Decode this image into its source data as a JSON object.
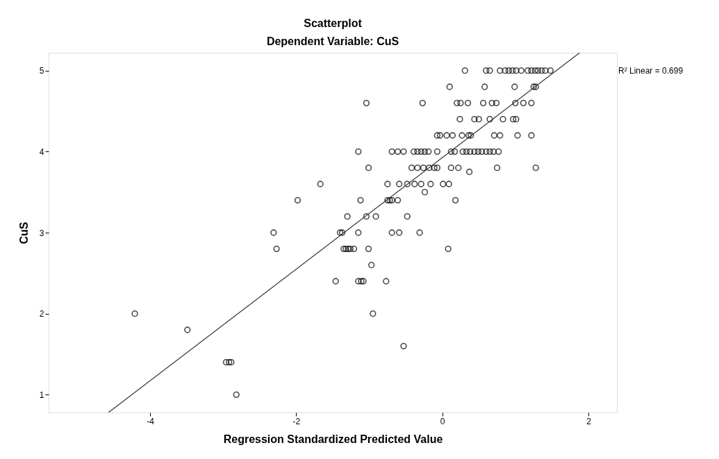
{
  "chart_data": {
    "type": "scatter",
    "title": "Scatterplot",
    "subtitle": "Dependent Variable: CuS",
    "xlabel": "Regression Standardized Predicted Value",
    "ylabel": "CuS",
    "xlim": [
      -5.39,
      2.39
    ],
    "ylim": [
      0.78,
      5.22
    ],
    "xticks": [
      -4,
      -2,
      0,
      2
    ],
    "yticks": [
      1,
      2,
      3,
      4,
      5
    ],
    "grid": false,
    "annotations": [
      "R² Linear = 0.699"
    ],
    "series": [
      {
        "marker": "circle",
        "color": "#000000",
        "x": [
          0.31,
          0.6,
          0.65,
          0.79,
          0.86,
          0.91,
          0.96,
          1.01,
          1.08,
          1.17,
          1.22,
          1.27,
          1.31,
          1.36,
          1.41,
          1.48,
          0.1,
          0.58,
          0.99,
          1.25,
          1.28,
          -1.04,
          -0.27,
          0.2,
          0.25,
          0.35,
          0.56,
          0.68,
          0.74,
          1.0,
          1.11,
          1.22,
          0.24,
          0.44,
          0.5,
          0.65,
          0.83,
          0.97,
          1.01,
          -0.07,
          -0.03,
          0.06,
          0.14,
          0.27,
          0.36,
          0.39,
          0.71,
          0.79,
          1.03,
          1.22,
          -1.15,
          -0.69,
          -0.61,
          -0.53,
          -0.39,
          -0.34,
          -0.29,
          -0.24,
          -0.19,
          -0.07,
          0.12,
          0.17,
          0.28,
          0.33,
          0.38,
          0.44,
          0.49,
          0.54,
          0.6,
          0.65,
          0.7,
          0.77,
          -1.01,
          -0.42,
          -0.34,
          -0.26,
          -0.18,
          -0.11,
          -0.07,
          0.12,
          0.22,
          0.75,
          1.28,
          0.37,
          -1.67,
          -0.75,
          -0.59,
          -0.48,
          -0.38,
          -0.29,
          -0.16,
          0.01,
          0.09,
          -0.24,
          -1.98,
          -1.12,
          -0.75,
          -0.72,
          -0.69,
          -0.61,
          0.18,
          -1.3,
          -1.04,
          -0.91,
          -0.48,
          -2.31,
          -1.4,
          -1.37,
          -1.15,
          -0.69,
          -0.59,
          -0.31,
          -2.27,
          -1.35,
          -1.32,
          -1.29,
          -1.26,
          -1.21,
          -1.01,
          0.08,
          -0.97,
          -1.46,
          -1.15,
          -1.11,
          -1.08,
          -0.77,
          -4.21,
          -0.95,
          -3.49,
          -0.53,
          -2.96,
          -2.92,
          -2.89,
          -2.82
        ],
        "values": [
          5,
          5,
          5,
          5,
          5,
          5,
          5,
          5,
          5,
          5,
          5,
          5,
          5,
          5,
          5,
          5,
          4.8,
          4.8,
          4.8,
          4.8,
          4.8,
          4.6,
          4.6,
          4.6,
          4.6,
          4.6,
          4.6,
          4.6,
          4.6,
          4.6,
          4.6,
          4.6,
          4.4,
          4.4,
          4.4,
          4.4,
          4.4,
          4.4,
          4.4,
          4.2,
          4.2,
          4.2,
          4.2,
          4.2,
          4.2,
          4.2,
          4.2,
          4.2,
          4.2,
          4.2,
          4,
          4,
          4,
          4,
          4,
          4,
          4,
          4,
          4,
          4,
          4,
          4,
          4,
          4,
          4,
          4,
          4,
          4,
          4,
          4,
          4,
          4,
          3.8,
          3.8,
          3.8,
          3.8,
          3.8,
          3.8,
          3.8,
          3.8,
          3.8,
          3.8,
          3.8,
          3.75,
          3.6,
          3.6,
          3.6,
          3.6,
          3.6,
          3.6,
          3.6,
          3.6,
          3.6,
          3.5,
          3.4,
          3.4,
          3.4,
          3.4,
          3.4,
          3.4,
          3.4,
          3.2,
          3.2,
          3.2,
          3.2,
          3,
          3,
          3,
          3,
          3,
          3,
          3,
          2.8,
          2.8,
          2.8,
          2.8,
          2.8,
          2.8,
          2.8,
          2.8,
          2.6,
          2.4,
          2.4,
          2.4,
          2.4,
          2.4,
          2,
          2,
          1.8,
          1.6,
          1.4,
          1.4,
          1.4,
          1
        ]
      },
      {
        "type": "line",
        "color": "#333333",
        "x": [
          -4.57,
          1.88
        ],
        "values": [
          0.78,
          5.22
        ]
      }
    ]
  }
}
